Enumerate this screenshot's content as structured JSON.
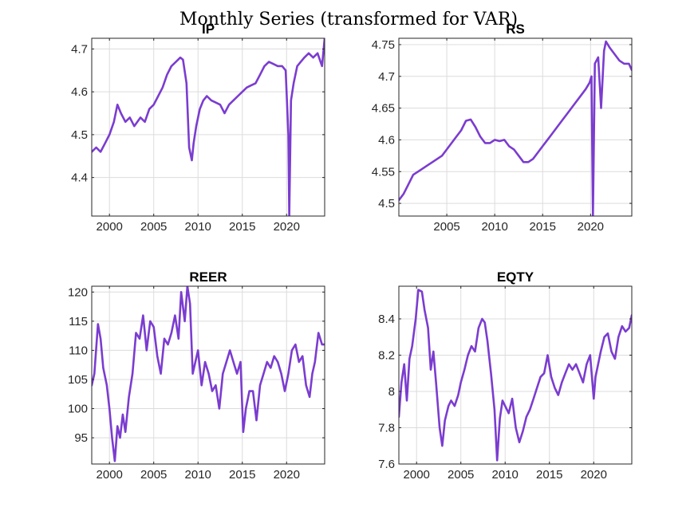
{
  "figure_title": "Monthly Series (transformed for VAR)",
  "colors": {
    "series": "#7b3cd0",
    "grid": "#dcdcdc",
    "axis": "#262626"
  },
  "chart_data": [
    {
      "type": "line",
      "title": "IP",
      "xlabel": "",
      "ylabel": "",
      "xlim": [
        1998,
        2024.3
      ],
      "ylim": [
        4.31,
        4.725
      ],
      "xticks": [
        2000,
        2005,
        2010,
        2015,
        2020
      ],
      "yticks": [
        4.4,
        4.5,
        4.6,
        4.7
      ],
      "ytick_labels": [
        "4.4",
        "4.5",
        "4.6",
        "4.7"
      ],
      "grid": true,
      "series": [
        {
          "values_x": [
            1998.0,
            1998.5,
            1999.0,
            1999.5,
            2000.0,
            2000.5,
            2000.9,
            2001.3,
            2001.8,
            2002.3,
            2002.8,
            2003.5,
            2004.0,
            2004.5,
            2005.0,
            2005.5,
            2006.0,
            2006.5,
            2007.0,
            2007.5,
            2008.0,
            2008.3,
            2008.7,
            2009.0,
            2009.3,
            2009.5,
            2009.8,
            2010.2,
            2010.6,
            2011.0,
            2011.5,
            2012.0,
            2012.5,
            2013.0,
            2013.5,
            2014.0,
            2014.5,
            2015.0,
            2015.5,
            2016.0,
            2016.5,
            2017.0,
            2017.5,
            2018.0,
            2018.5,
            2019.0,
            2019.5,
            2019.9,
            2020.2,
            2020.3,
            2020.5,
            2020.8,
            2021.2,
            2021.6,
            2022.0,
            2022.5,
            2023.0,
            2023.5,
            2024.0,
            2024.3
          ],
          "values_y": [
            4.46,
            4.47,
            4.46,
            4.48,
            4.5,
            4.53,
            4.57,
            4.55,
            4.53,
            4.54,
            4.52,
            4.54,
            4.53,
            4.56,
            4.57,
            4.59,
            4.61,
            4.64,
            4.66,
            4.67,
            4.68,
            4.675,
            4.62,
            4.47,
            4.44,
            4.48,
            4.52,
            4.56,
            4.58,
            4.59,
            4.58,
            4.575,
            4.57,
            4.55,
            4.57,
            4.58,
            4.59,
            4.6,
            4.61,
            4.615,
            4.62,
            4.64,
            4.66,
            4.67,
            4.665,
            4.66,
            4.66,
            4.65,
            4.5,
            4.31,
            4.58,
            4.62,
            4.66,
            4.67,
            4.68,
            4.69,
            4.68,
            4.69,
            4.66,
            4.725
          ]
        }
      ]
    },
    {
      "type": "line",
      "title": "RS",
      "xlabel": "",
      "ylabel": "",
      "xlim": [
        2000,
        2024.3
      ],
      "ylim": [
        4.48,
        4.76
      ],
      "xticks": [
        2005,
        2010,
        2015,
        2020
      ],
      "yticks": [
        4.5,
        4.55,
        4.6,
        4.65,
        4.7,
        4.75
      ],
      "ytick_labels": [
        "4.5",
        "4.55",
        "4.6",
        "4.65",
        "4.7",
        "4.75"
      ],
      "grid": true,
      "series": [
        {
          "values_x": [
            2000.0,
            2000.5,
            2001.0,
            2001.5,
            2002.0,
            2002.5,
            2003.0,
            2003.5,
            2004.0,
            2004.5,
            2005.0,
            2005.5,
            2006.0,
            2006.5,
            2007.0,
            2007.5,
            2008.0,
            2008.5,
            2009.0,
            2009.5,
            2010.0,
            2010.5,
            2011.0,
            2011.5,
            2012.0,
            2012.5,
            2013.0,
            2013.5,
            2014.0,
            2014.5,
            2015.0,
            2015.5,
            2016.0,
            2016.5,
            2017.0,
            2017.5,
            2018.0,
            2018.5,
            2019.0,
            2019.5,
            2019.9,
            2020.1,
            2020.25,
            2020.45,
            2020.8,
            2021.1,
            2021.4,
            2021.6,
            2022.0,
            2022.5,
            2023.0,
            2023.5,
            2024.0,
            2024.3
          ],
          "values_y": [
            4.505,
            4.515,
            4.53,
            4.545,
            4.55,
            4.555,
            4.56,
            4.565,
            4.57,
            4.575,
            4.585,
            4.595,
            4.605,
            4.615,
            4.63,
            4.632,
            4.62,
            4.605,
            4.595,
            4.595,
            4.6,
            4.598,
            4.6,
            4.59,
            4.585,
            4.575,
            4.565,
            4.565,
            4.57,
            4.58,
            4.59,
            4.6,
            4.61,
            4.62,
            4.63,
            4.64,
            4.65,
            4.66,
            4.67,
            4.68,
            4.69,
            4.7,
            4.48,
            4.72,
            4.73,
            4.65,
            4.74,
            4.755,
            4.745,
            4.735,
            4.725,
            4.72,
            4.72,
            4.71
          ]
        }
      ]
    },
    {
      "type": "line",
      "title": "REER",
      "xlabel": "",
      "ylabel": "",
      "xlim": [
        1998,
        2024.3
      ],
      "ylim": [
        90.5,
        121
      ],
      "xticks": [
        2000,
        2005,
        2010,
        2015,
        2020
      ],
      "yticks": [
        95,
        100,
        105,
        110,
        115,
        120
      ],
      "ytick_labels": [
        "95",
        "100",
        "105",
        "110",
        "115",
        "120"
      ],
      "grid": true,
      "series": [
        {
          "values_x": [
            1998.0,
            1998.3,
            1998.7,
            1999.0,
            1999.3,
            1999.7,
            2000.0,
            2000.3,
            2000.6,
            2000.9,
            2001.2,
            2001.5,
            2001.8,
            2002.2,
            2002.6,
            2003.0,
            2003.4,
            2003.8,
            2004.2,
            2004.6,
            2005.0,
            2005.4,
            2005.8,
            2006.2,
            2006.6,
            2007.0,
            2007.4,
            2007.8,
            2008.1,
            2008.5,
            2008.8,
            2009.1,
            2009.4,
            2009.7,
            2010.0,
            2010.4,
            2010.8,
            2011.2,
            2011.6,
            2012.0,
            2012.4,
            2012.8,
            2013.2,
            2013.6,
            2014.0,
            2014.4,
            2014.8,
            2015.1,
            2015.4,
            2015.8,
            2016.2,
            2016.6,
            2017.0,
            2017.4,
            2017.8,
            2018.2,
            2018.6,
            2019.0,
            2019.4,
            2019.8,
            2020.2,
            2020.6,
            2021.0,
            2021.4,
            2021.8,
            2022.2,
            2022.6,
            2022.9,
            2023.2,
            2023.6,
            2024.0,
            2024.3
          ],
          "values_y": [
            104,
            106,
            114.5,
            112,
            107,
            104,
            100,
            95,
            91,
            97,
            95,
            99,
            96,
            102,
            106,
            113,
            112,
            116,
            110,
            115,
            114,
            109,
            106,
            112,
            111,
            113,
            116,
            112,
            120,
            115,
            121,
            118,
            106,
            108,
            110,
            104,
            108,
            106,
            103,
            104,
            100,
            106,
            108,
            110,
            108,
            106,
            108,
            96,
            100,
            103,
            103,
            98,
            104,
            106,
            108,
            107,
            109,
            108,
            106,
            103,
            106,
            110,
            111,
            108,
            109,
            104,
            102,
            106,
            108,
            113,
            111,
            111
          ]
        }
      ]
    },
    {
      "type": "line",
      "title": "EQTY",
      "xlabel": "",
      "ylabel": "",
      "xlim": [
        1998,
        2024.3
      ],
      "ylim": [
        7.6,
        8.58
      ],
      "xticks": [
        2000,
        2005,
        2010,
        2015,
        2020
      ],
      "yticks": [
        7.6,
        7.8,
        8,
        8.2,
        8.4
      ],
      "ytick_labels": [
        "7.6",
        "7.8",
        "8",
        "8.2",
        "8.4"
      ],
      "grid": true,
      "series": [
        {
          "values_x": [
            1998.0,
            1998.3,
            1998.6,
            1998.9,
            1999.2,
            1999.5,
            1999.9,
            2000.2,
            2000.6,
            2000.9,
            2001.3,
            2001.6,
            2001.9,
            2002.2,
            2002.6,
            2002.9,
            2003.2,
            2003.6,
            2003.9,
            2004.3,
            2004.7,
            2005.0,
            2005.4,
            2005.8,
            2006.2,
            2006.6,
            2007.0,
            2007.4,
            2007.7,
            2008.0,
            2008.4,
            2008.8,
            2009.1,
            2009.4,
            2009.7,
            2010.0,
            2010.4,
            2010.8,
            2011.2,
            2011.6,
            2012.0,
            2012.4,
            2012.8,
            2013.2,
            2013.6,
            2014.0,
            2014.4,
            2014.8,
            2015.2,
            2015.6,
            2016.0,
            2016.4,
            2016.8,
            2017.2,
            2017.6,
            2018.0,
            2018.4,
            2018.8,
            2019.2,
            2019.6,
            2020.0,
            2020.2,
            2020.5,
            2020.8,
            2021.2,
            2021.6,
            2022.0,
            2022.4,
            2022.8,
            2023.2,
            2023.6,
            2024.0,
            2024.3
          ],
          "values_y": [
            7.86,
            8.05,
            8.15,
            7.95,
            8.18,
            8.25,
            8.4,
            8.56,
            8.55,
            8.45,
            8.35,
            8.12,
            8.22,
            8.05,
            7.8,
            7.7,
            7.84,
            7.92,
            7.95,
            7.92,
            7.98,
            8.05,
            8.12,
            8.2,
            8.25,
            8.22,
            8.35,
            8.4,
            8.38,
            8.28,
            8.1,
            7.9,
            7.62,
            7.85,
            7.95,
            7.92,
            7.88,
            7.96,
            7.8,
            7.72,
            7.78,
            7.86,
            7.9,
            7.96,
            8.02,
            8.08,
            8.1,
            8.2,
            8.08,
            8.02,
            7.98,
            8.05,
            8.1,
            8.15,
            8.12,
            8.15,
            8.1,
            8.05,
            8.15,
            8.2,
            7.96,
            8.08,
            8.15,
            8.22,
            8.3,
            8.32,
            8.22,
            8.18,
            8.3,
            8.36,
            8.33,
            8.35,
            8.42
          ]
        }
      ]
    }
  ]
}
